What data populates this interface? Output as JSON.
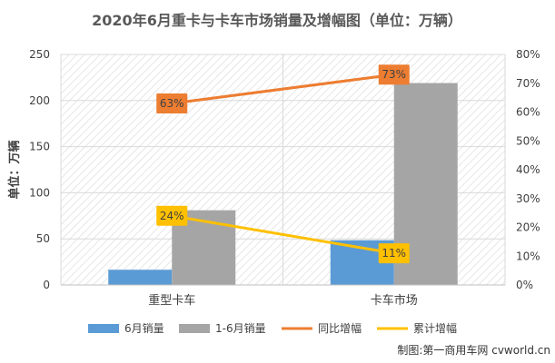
{
  "chart_data": {
    "type": "bar",
    "title": "2020年6月重卡与卡车市场销量及增幅图（单位：万辆）",
    "ylabel": "单位：万辆",
    "categories": [
      "重型卡车",
      "卡车市场"
    ],
    "ylim": [
      0,
      250
    ],
    "y_ticks": [
      0,
      50,
      100,
      150,
      200,
      250
    ],
    "y2lim": [
      0,
      80
    ],
    "y2_ticks": [
      "0%",
      "10%",
      "20%",
      "30%",
      "40%",
      "50%",
      "60%",
      "70%",
      "80%"
    ],
    "y2_tick_values": [
      0,
      10,
      20,
      30,
      40,
      50,
      60,
      70,
      80
    ],
    "series": [
      {
        "name": "6月销量",
        "type": "bar",
        "axis": "left",
        "color": "#5b9bd5",
        "values": [
          16.5,
          48.5
        ]
      },
      {
        "name": "1-6月销量",
        "type": "bar",
        "axis": "left",
        "color": "#a5a5a5",
        "values": [
          81,
          219
        ]
      },
      {
        "name": "同比增幅",
        "type": "line",
        "axis": "right",
        "color": "#ed7d31",
        "values": [
          63,
          73
        ],
        "labels": [
          "63%",
          "73%"
        ]
      },
      {
        "name": "累计增幅",
        "type": "line",
        "axis": "right",
        "color": "#ffc000",
        "values": [
          24,
          11
        ],
        "labels": [
          "24%",
          "11%"
        ]
      }
    ],
    "legend_position": "bottom",
    "grid": true
  },
  "credit": "制图:第一商用车网 cvworld.cn"
}
